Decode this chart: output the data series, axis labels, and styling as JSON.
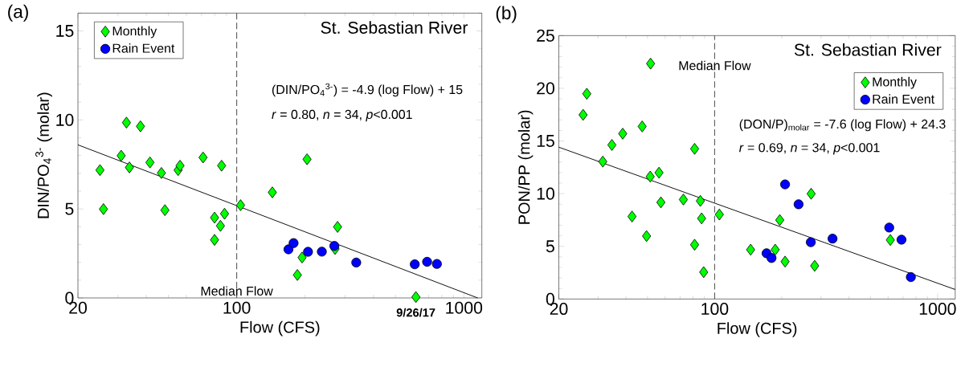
{
  "chart_data": [
    {
      "type": "scatter",
      "title": "St. Sebastian River",
      "xlabel": "Flow (CFS)",
      "ylabel": "DIN/PO$_{4}$$^{3-}$ (molar)",
      "log": "x",
      "grid": false,
      "legend": "top left",
      "xlim": [
        20,
        1200
      ],
      "ylim": [
        0,
        16
      ],
      "xticks": [
        20,
        {
          "value": 30,
          "label": null
        },
        {
          "value": 40,
          "label": null
        },
        {
          "value": 50,
          "label": null
        },
        {
          "value": 60,
          "label": null
        },
        {
          "value": 70,
          "label": null
        },
        {
          "value": 80,
          "label": null
        },
        {
          "value": 90,
          "label": null
        },
        100,
        {
          "value": 200,
          "label": null
        },
        {
          "value": 300,
          "label": null
        },
        {
          "value": 400,
          "label": null
        },
        {
          "value": 500,
          "label": null
        },
        {
          "value": 600,
          "label": null
        },
        {
          "value": 700,
          "label": null
        },
        {
          "value": 800,
          "label": null
        },
        {
          "value": 900,
          "label": null
        },
        1000
      ],
      "yticks": [
        0,
        {
          "value": 1,
          "label": null
        },
        {
          "value": 2,
          "label": null
        },
        {
          "value": 3,
          "label": null
        },
        {
          "value": 4,
          "label": null
        },
        5,
        {
          "value": 6,
          "label": null
        },
        {
          "value": 7,
          "label": null
        },
        {
          "value": 8,
          "label": null
        },
        {
          "value": 9,
          "label": null
        },
        10,
        {
          "value": 11,
          "label": null
        },
        {
          "value": 12,
          "label": null
        },
        {
          "value": 13,
          "label": null
        },
        {
          "value": 14,
          "label": null
        },
        15,
        {
          "value": 16,
          "label": null
        }
      ],
      "series": [
        {
          "name": "Monthly",
          "marker": "diamond",
          "color": "#00ff00",
          "x": [
            25.0,
            25.9,
            31.0,
            32.7,
            33.7,
            37.7,
            41.5,
            46.6,
            48.3,
            55.2,
            56.3,
            71.1,
            79.9,
            84.8,
            79.9,
            85.8,
            88.4,
            104,
            143.5,
            204,
            194,
            185,
            271,
            278,
            615
          ],
          "values": [
            7.18,
            4.99,
            7.99,
            9.85,
            7.33,
            9.64,
            7.61,
            7.02,
            4.93,
            7.18,
            7.43,
            7.89,
            4.51,
            4.05,
            3.26,
            7.43,
            4.73,
            5.21,
            5.93,
            7.79,
            2.27,
            1.29,
            2.75,
            3.99,
            0.05
          ]
        },
        {
          "name": "Rain Event",
          "marker": "circle",
          "color": "#0000ff",
          "x": [
            169,
            178,
            206,
            237,
            269,
            336,
            608,
            689,
            761
          ],
          "values": [
            2.73,
            3.08,
            2.59,
            2.6,
            2.92,
            1.99,
            1.89,
            2.03,
            1.91
          ]
        },
        {
          "type": "line",
          "marker": "none",
          "color": "#000000",
          "x": [
            20,
            1150
          ],
          "values": [
            8.6,
            0.0
          ]
        }
      ],
      "ref_lines": [
        {
          "axis": "x",
          "value": 100,
          "label": "Median Flow",
          "color": "#555555",
          "line_style": "dashed"
        }
      ],
      "annotations": [
        "(a)",
        "(DIN/PO$_{4}$$^{3-}$) = -4.9 (log Flow) + 15",
        "*r* = 0.80, *n* = 34, *p*<0.001",
        {
          "text": "9/26/17",
          "x": 615,
          "y": 0
        }
      ]
    },
    {
      "type": "scatter",
      "title": "St. Sebastian River",
      "xlabel": "Flow (CFS)",
      "ylabel": "PON/PP (molar)",
      "log": "x",
      "grid": false,
      "legend": "top right",
      "xlim": [
        20,
        1200
      ],
      "ylim": [
        0,
        25
      ],
      "xticks": [
        20,
        {
          "value": 30,
          "label": null
        },
        {
          "value": 40,
          "label": null
        },
        {
          "value": 50,
          "label": null
        },
        {
          "value": 60,
          "label": null
        },
        {
          "value": 70,
          "label": null
        },
        {
          "value": 80,
          "label": null
        },
        {
          "value": 90,
          "label": null
        },
        100,
        {
          "value": 200,
          "label": null
        },
        {
          "value": 300,
          "label": null
        },
        {
          "value": 400,
          "label": null
        },
        {
          "value": 500,
          "label": null
        },
        {
          "value": 600,
          "label": null
        },
        {
          "value": 700,
          "label": null
        },
        {
          "value": 800,
          "label": null
        },
        {
          "value": 900,
          "label": null
        },
        1000
      ],
      "yticks": [
        0,
        {
          "value": 1,
          "label": null
        },
        {
          "value": 2,
          "label": null
        },
        {
          "value": 3,
          "label": null
        },
        {
          "value": 4,
          "label": null
        },
        5,
        {
          "value": 6,
          "label": null
        },
        {
          "value": 7,
          "label": null
        },
        {
          "value": 8,
          "label": null
        },
        {
          "value": 9,
          "label": null
        },
        10,
        {
          "value": 11,
          "label": null
        },
        {
          "value": 12,
          "label": null
        },
        {
          "value": 13,
          "label": null
        },
        {
          "value": 14,
          "label": null
        },
        15,
        {
          "value": 16,
          "label": null
        },
        {
          "value": 17,
          "label": null
        },
        {
          "value": 18,
          "label": null
        },
        {
          "value": 19,
          "label": null
        },
        20,
        {
          "value": 21,
          "label": null
        },
        {
          "value": 22,
          "label": null
        },
        {
          "value": 23,
          "label": null
        },
        {
          "value": 24,
          "label": null
        },
        25
      ],
      "series": [
        {
          "name": "Monthly",
          "marker": "diamond",
          "color": "#00ff00",
          "x": [
            25.7,
            26.7,
            31.5,
            34.6,
            38.7,
            42.6,
            47.3,
            49.5,
            51.6,
            51.4,
            56.3,
            57.4,
            72.4,
            81.3,
            86.3,
            87.4,
            81.3,
            89.3,
            105,
            145,
            187,
            196,
            207,
            271,
            281,
            614
          ],
          "values": [
            17.48,
            19.48,
            13.04,
            14.62,
            15.69,
            7.83,
            16.38,
            5.97,
            22.34,
            11.62,
            11.99,
            9.17,
            9.44,
            14.25,
            9.31,
            7.65,
            5.15,
            2.55,
            8.02,
            4.68,
            4.68,
            7.49,
            3.55,
            9.99,
            3.15,
            5.6
          ]
        },
        {
          "name": "Rain Event",
          "marker": "circle",
          "color": "#0000ff",
          "x": [
            171,
            180,
            207,
            238,
            270,
            338,
            607,
            689,
            759
          ],
          "values": [
            4.34,
            3.89,
            10.88,
            8.99,
            5.39,
            5.73,
            6.78,
            5.63,
            2.08
          ]
        },
        {
          "type": "line",
          "marker": "none",
          "color": "#000000",
          "x": [
            20,
            1200
          ],
          "values": [
            14.41,
            0.9
          ]
        }
      ],
      "ref_lines": [
        {
          "axis": "x",
          "value": 100,
          "label": "Median Flow",
          "color": "#555555",
          "line_style": "dashed"
        }
      ],
      "annotations": [
        "(b)",
        "(DON/P)$_{molar}$ = -7.6 (log Flow) + 24.3",
        "*r* = 0.69, *n* = 34, *p*<0.001"
      ]
    }
  ]
}
